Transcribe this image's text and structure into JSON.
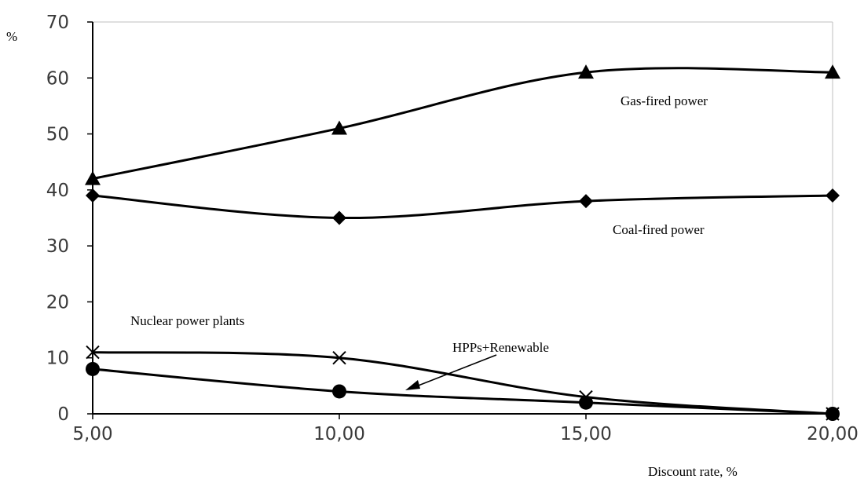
{
  "chart_data": {
    "type": "line",
    "title": "",
    "ylabel": "%",
    "xlabel": "Discount rate, %",
    "x": [
      5,
      10,
      15,
      20
    ],
    "x_tick_labels": [
      "5,00",
      "10,00",
      "15,00",
      "20,00"
    ],
    "xlim": [
      5,
      20
    ],
    "ylim": [
      0,
      70
    ],
    "y_ticks": [
      0,
      10,
      20,
      30,
      40,
      50,
      60,
      70
    ],
    "grid": false,
    "series": [
      {
        "name": "Gas-fired power",
        "marker": "triangle",
        "values": [
          42,
          51,
          61,
          61
        ]
      },
      {
        "name": "Coal-fired power",
        "marker": "diamond",
        "values": [
          39,
          35,
          38,
          39
        ]
      },
      {
        "name": "Nuclear power plants",
        "marker": "cross",
        "values": [
          11,
          10,
          3,
          0
        ]
      },
      {
        "name": "HPPs+Renewable",
        "marker": "circle",
        "values": [
          8,
          4,
          2,
          0
        ]
      }
    ],
    "annotations": [
      {
        "text": "Gas-fired power"
      },
      {
        "text": "Coal-fired power"
      },
      {
        "text": "Nuclear power plants"
      },
      {
        "text": "HPPs+Renewable",
        "arrow": true
      }
    ],
    "colors": {
      "lines": "#000000",
      "axis": "#000000",
      "ticks": "#3a3a3a",
      "frame": "#bfbfbf"
    }
  }
}
